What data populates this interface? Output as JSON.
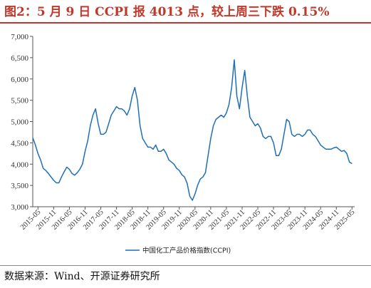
{
  "title": "图2：5 月 9 日 CCPI 报 4013 点，较上周三下跌 0.15%",
  "source": "数据来源：Wind、开源证券研究所",
  "colors": {
    "title": "#c0392b",
    "line": "#1f6fb5",
    "axis": "#555555"
  },
  "chart_data": {
    "type": "line",
    "title": "",
    "xlabel": "",
    "ylabel": "",
    "ylim": [
      3000,
      7000
    ],
    "yticks": [
      "3,000",
      "3,500",
      "4,000",
      "4,500",
      "5,000",
      "5,500",
      "6,000",
      "6,500",
      "7,000"
    ],
    "xticks": [
      "2015-05",
      "2015-11",
      "2016-05",
      "2016-11",
      "2017-05",
      "2017-11",
      "2018-05",
      "2018-11",
      "2019-05",
      "2019-11",
      "2020-05",
      "2020-11",
      "2021-05",
      "2021-11",
      "2022-05",
      "2022-11",
      "2023-05",
      "2023-11",
      "2024-05",
      "2024-11",
      "2025-05"
    ],
    "grid": false,
    "legend_position": "bottom",
    "series": [
      {
        "name": "中国化工产品价格指数(CCPI)",
        "x": [
          "2015-03",
          "2015-04",
          "2015-05",
          "2015-06",
          "2015-07",
          "2015-08",
          "2015-09",
          "2015-10",
          "2015-11",
          "2015-12",
          "2016-01",
          "2016-02",
          "2016-03",
          "2016-04",
          "2016-05",
          "2016-06",
          "2016-07",
          "2016-08",
          "2016-09",
          "2016-10",
          "2016-11",
          "2016-12",
          "2017-01",
          "2017-02",
          "2017-03",
          "2017-04",
          "2017-05",
          "2017-06",
          "2017-07",
          "2017-08",
          "2017-09",
          "2017-10",
          "2017-11",
          "2017-12",
          "2018-01",
          "2018-02",
          "2018-03",
          "2018-04",
          "2018-05",
          "2018-06",
          "2018-07",
          "2018-08",
          "2018-09",
          "2018-10",
          "2018-11",
          "2018-12",
          "2019-01",
          "2019-02",
          "2019-03",
          "2019-04",
          "2019-05",
          "2019-06",
          "2019-07",
          "2019-08",
          "2019-09",
          "2019-10",
          "2019-11",
          "2019-12",
          "2020-01",
          "2020-02",
          "2020-03",
          "2020-04",
          "2020-05",
          "2020-06",
          "2020-07",
          "2020-08",
          "2020-09",
          "2020-10",
          "2020-11",
          "2020-12",
          "2021-01",
          "2021-02",
          "2021-03",
          "2021-04",
          "2021-05",
          "2021-06",
          "2021-07",
          "2021-08",
          "2021-09",
          "2021-10",
          "2021-11",
          "2021-12",
          "2022-01",
          "2022-02",
          "2022-03",
          "2022-04",
          "2022-05",
          "2022-06",
          "2022-07",
          "2022-08",
          "2022-09",
          "2022-10",
          "2022-11",
          "2022-12",
          "2023-01",
          "2023-02",
          "2023-03",
          "2023-04",
          "2023-05",
          "2023-06",
          "2023-07",
          "2023-08",
          "2023-09",
          "2023-10",
          "2023-11",
          "2023-12",
          "2024-01",
          "2024-02",
          "2024-03",
          "2024-04",
          "2024-05",
          "2024-06",
          "2024-07",
          "2024-08",
          "2024-09",
          "2024-10",
          "2024-11",
          "2024-12",
          "2025-01",
          "2025-02",
          "2025-03",
          "2025-04",
          "2025-05"
        ],
        "values": [
          4620,
          4450,
          4250,
          4100,
          3900,
          3850,
          3780,
          3700,
          3620,
          3560,
          3560,
          3700,
          3820,
          3930,
          3880,
          3780,
          3740,
          3800,
          3880,
          4000,
          4300,
          4550,
          4900,
          5150,
          5300,
          4950,
          4700,
          4700,
          4750,
          4950,
          5150,
          5250,
          5350,
          5300,
          5300,
          5250,
          5150,
          5300,
          5600,
          5800,
          5500,
          4900,
          4600,
          4500,
          4400,
          4400,
          4350,
          4450,
          4300,
          4300,
          4350,
          4250,
          4100,
          4050,
          4000,
          3900,
          3850,
          3750,
          3700,
          3550,
          3250,
          3150,
          3300,
          3500,
          3650,
          3700,
          3800,
          4200,
          4600,
          4900,
          5050,
          5100,
          5150,
          5100,
          5200,
          5400,
          5800,
          6450,
          5600,
          5300,
          5800,
          6200,
          5600,
          5100,
          5000,
          4900,
          4950,
          4850,
          4650,
          4600,
          4650,
          4650,
          4500,
          4200,
          4200,
          4350,
          4700,
          5050,
          5000,
          4700,
          4650,
          4700,
          4700,
          4650,
          4700,
          4800,
          4800,
          4700,
          4650,
          4550,
          4450,
          4400,
          4350,
          4350,
          4350,
          4380,
          4400,
          4350,
          4300,
          4320,
          4250,
          4050,
          4013
        ]
      }
    ]
  }
}
